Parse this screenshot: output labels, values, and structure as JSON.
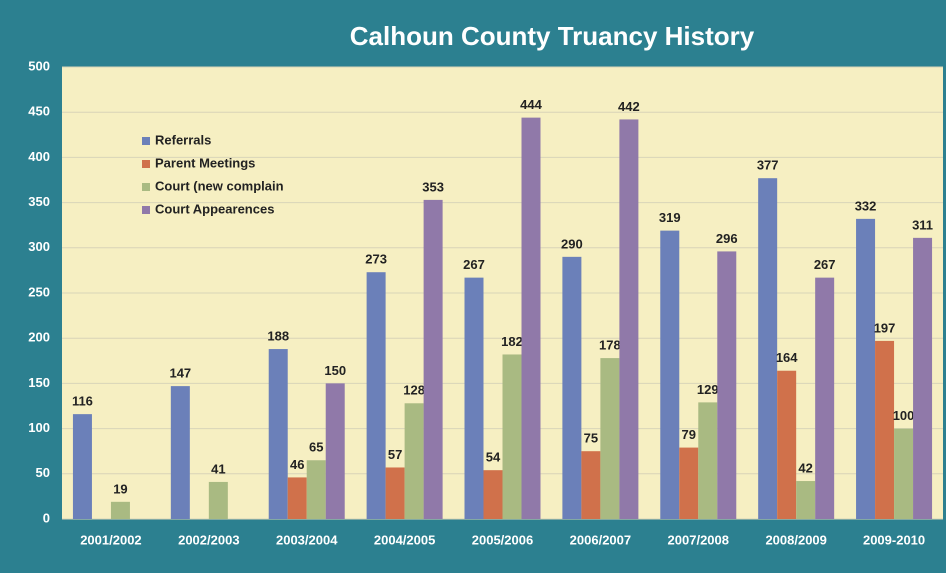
{
  "chart_data": {
    "type": "bar",
    "title": "Calhoun County Truancy History",
    "categories": [
      "2001/2002",
      "2002/2003",
      "2003/2004",
      "2004/2005",
      "2005/2006",
      "2006/2007",
      "2007/2008",
      "2008/2009",
      "2009-2010"
    ],
    "series": [
      {
        "name": "Referrals",
        "color": "#6b80b9",
        "values": [
          116,
          147,
          188,
          273,
          267,
          290,
          319,
          377,
          332
        ]
      },
      {
        "name": "Parent Meetings",
        "color": "#d0714b",
        "values": [
          null,
          null,
          46,
          57,
          54,
          75,
          79,
          164,
          197
        ]
      },
      {
        "name": "Court (new complain",
        "color": "#a9ba82",
        "values": [
          19,
          41,
          65,
          128,
          182,
          178,
          129,
          42,
          100
        ]
      },
      {
        "name": "Court Appearences",
        "color": "#9079a9",
        "values": [
          null,
          null,
          150,
          353,
          444,
          442,
          296,
          267,
          311
        ]
      }
    ],
    "ylim": [
      0,
      500
    ],
    "yticks": [
      0,
      50,
      100,
      150,
      200,
      250,
      300,
      350,
      400,
      450,
      500
    ],
    "grid": true,
    "legend": "upper left"
  }
}
